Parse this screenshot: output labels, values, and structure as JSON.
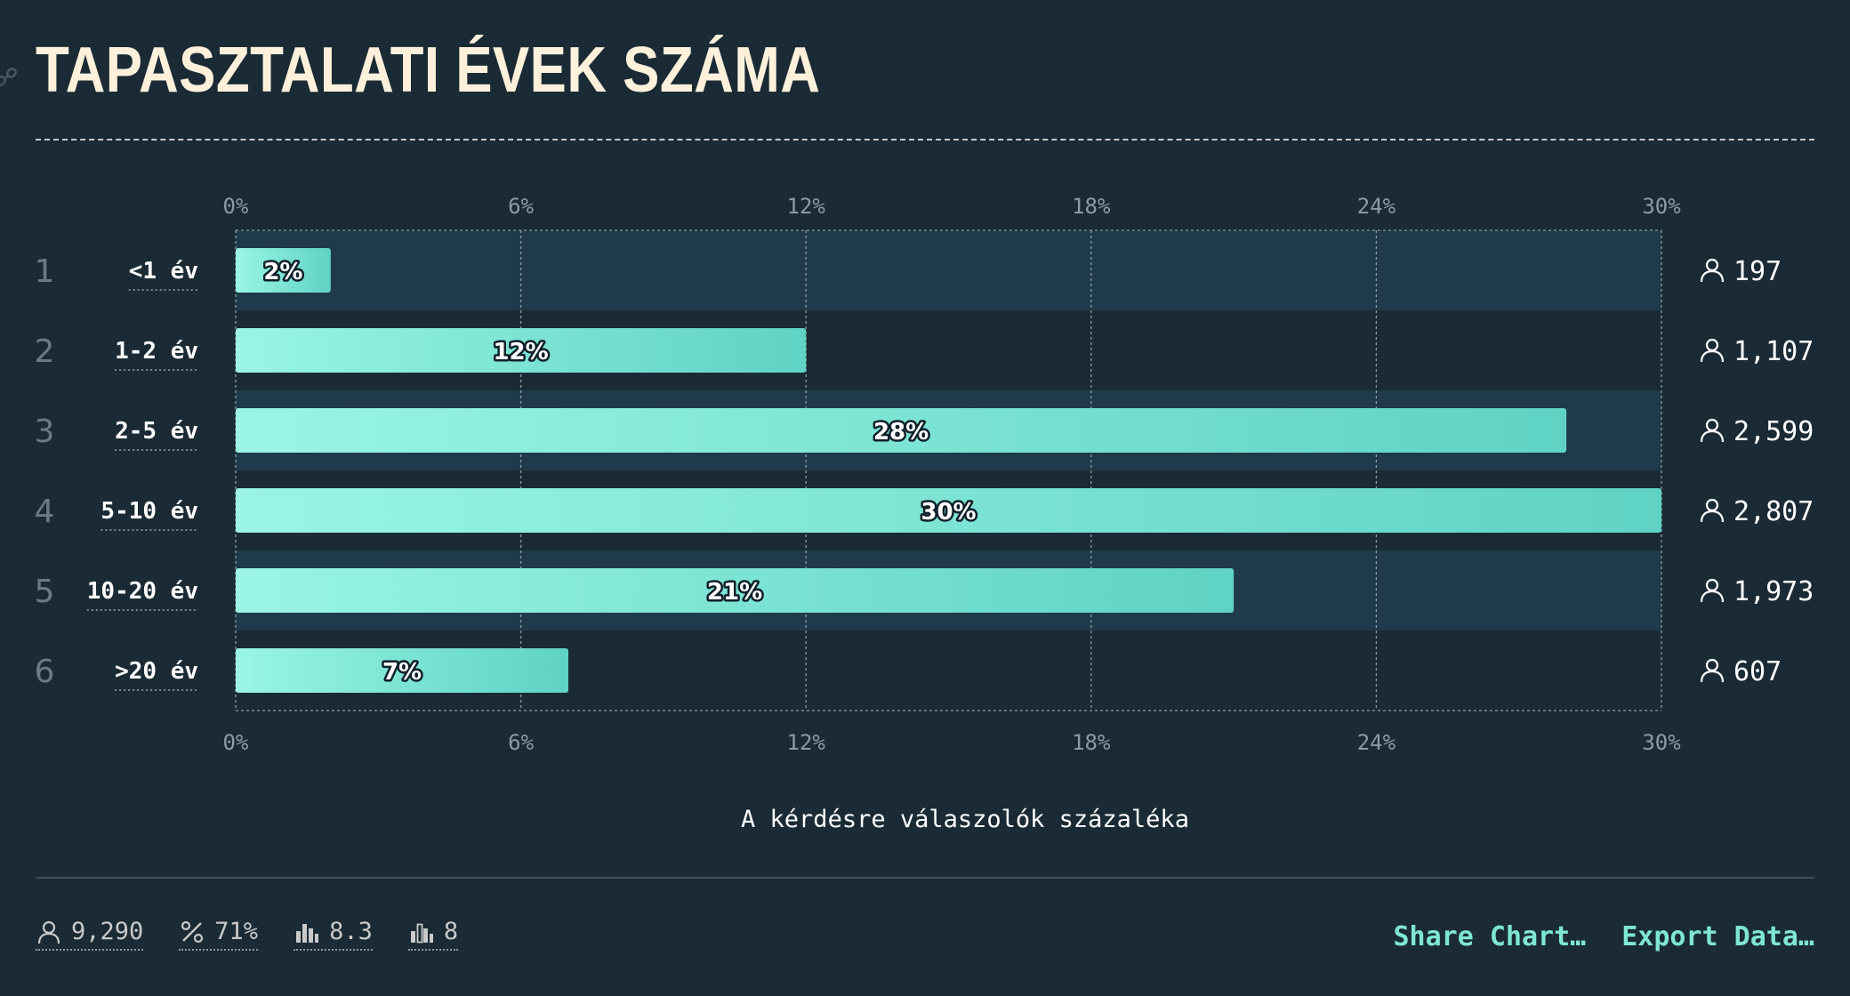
{
  "title": "TAPASZTALATI ÉVEK SZÁMA",
  "chart_data": {
    "type": "bar",
    "orientation": "horizontal",
    "categories": [
      "<1 év",
      "1-2 év",
      "2-5 év",
      "5-10 év",
      "10-20 év",
      ">20 év"
    ],
    "ranks": [
      "1",
      "2",
      "3",
      "4",
      "5",
      "6"
    ],
    "values": [
      2,
      12,
      28,
      30,
      21,
      7
    ],
    "value_labels": [
      "2%",
      "12%",
      "28%",
      "30%",
      "21%",
      "7%"
    ],
    "counts": [
      "197",
      "1,107",
      "2,599",
      "2,807",
      "1,973",
      "607"
    ],
    "xlim": [
      0,
      30
    ],
    "xticks": [
      "0%",
      "6%",
      "12%",
      "18%",
      "24%",
      "30%"
    ],
    "xlabel": "A kérdésre válaszolók százaléka",
    "grid": true,
    "colors": {
      "bar_start": "#9af5e5",
      "bar_end": "#5fd3c3",
      "band": "#1f3a4a"
    }
  },
  "footer": {
    "stats": [
      {
        "icon": "person-icon",
        "value": "9,290"
      },
      {
        "icon": "percent-icon",
        "value": "71%"
      },
      {
        "icon": "bar-chart-icon",
        "value": "8.3"
      },
      {
        "icon": "bar-chart-outline-icon",
        "value": "8"
      }
    ],
    "share_label": "Share Chart…",
    "export_label": "Export Data…"
  }
}
